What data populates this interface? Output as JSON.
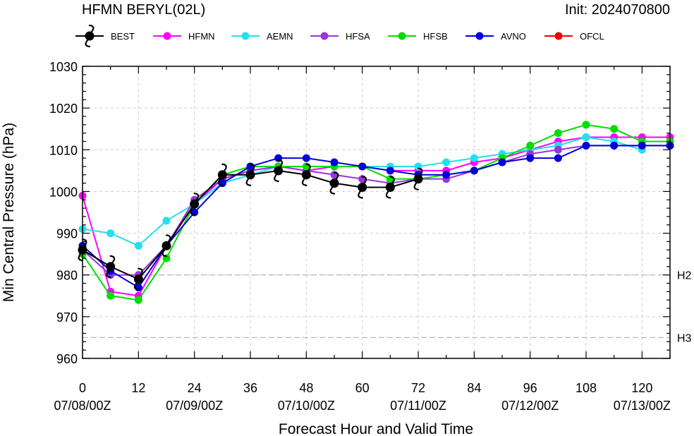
{
  "chart_data": {
    "type": "line",
    "title": "HFMN BERYL(02L)",
    "init_label": "Init: 2024070800",
    "xlabel": "Forecast Hour and Valid Time",
    "ylabel": "Min Central Pressure (hPa)",
    "xlim": [
      0,
      126
    ],
    "ylim": [
      960,
      1030
    ],
    "xticks": [
      0,
      12,
      24,
      36,
      48,
      60,
      72,
      84,
      96,
      108,
      120
    ],
    "xtick_labels": [
      "0",
      "12",
      "24",
      "36",
      "48",
      "60",
      "72",
      "84",
      "96",
      "108",
      "120"
    ],
    "date_ticks": [
      {
        "x": 0,
        "label": "07/08/00Z"
      },
      {
        "x": 24,
        "label": "07/09/00Z"
      },
      {
        "x": 48,
        "label": "07/10/00Z"
      },
      {
        "x": 72,
        "label": "07/11/00Z"
      },
      {
        "x": 96,
        "label": "07/12/00Z"
      },
      {
        "x": 120,
        "label": "07/13/00Z"
      }
    ],
    "yticks": [
      960,
      970,
      980,
      990,
      1000,
      1010,
      1020,
      1030
    ],
    "grid": true,
    "legend_position": "top",
    "reference_lines": [
      {
        "label": "H2",
        "value": 980
      },
      {
        "label": "H3",
        "value": 965
      }
    ],
    "series": [
      {
        "name": "HFMN",
        "color": "#ff00ff",
        "marker": "circle",
        "x": [
          0,
          6,
          12,
          18,
          24,
          30,
          36,
          42,
          48,
          54,
          60,
          66,
          72,
          78,
          84,
          90,
          96,
          102,
          108,
          114,
          120,
          126
        ],
        "y": [
          999,
          976,
          975,
          987,
          997,
          1003,
          1005,
          1006,
          1005,
          1006,
          1006,
          1005,
          1005,
          1005,
          1007,
          1008,
          1010,
          1012,
          1013,
          1013,
          1013,
          1013
        ]
      },
      {
        "name": "AEMN",
        "color": "#22e0ee",
        "marker": "circle",
        "x": [
          0,
          6,
          12,
          18,
          24,
          30,
          36,
          42,
          48,
          54,
          60,
          66,
          72,
          78,
          84,
          90,
          96,
          102,
          108,
          114,
          120
        ],
        "y": [
          991,
          990,
          987,
          993,
          997,
          1002,
          1004,
          1006,
          1006,
          1006,
          1006,
          1006,
          1006,
          1007,
          1008,
          1009,
          1010,
          1011,
          1013,
          1012,
          1010
        ]
      },
      {
        "name": "HFSA",
        "color": "#9933dd",
        "marker": "circle",
        "x": [
          0,
          6,
          12,
          18,
          24,
          30,
          36,
          42,
          48,
          54,
          60,
          66,
          72,
          78,
          84,
          90,
          96,
          102,
          108,
          114,
          120,
          126
        ],
        "y": [
          986,
          980,
          980,
          987,
          998,
          1003,
          1005,
          1006,
          1005,
          1004,
          1003,
          1002,
          1003,
          1003,
          1005,
          1007,
          1009,
          1010,
          1011,
          1011,
          1011,
          1011
        ]
      },
      {
        "name": "HFSB",
        "color": "#00dd00",
        "marker": "circle",
        "x": [
          0,
          6,
          12,
          18,
          24,
          30,
          36,
          42,
          48,
          54,
          60,
          66,
          72,
          78,
          84,
          90,
          96,
          102,
          108,
          114,
          120,
          126
        ],
        "y": [
          985,
          975,
          974,
          984,
          997,
          1004,
          1006,
          1006,
          1006,
          1006,
          1006,
          1003,
          1003,
          1004,
          1005,
          1008,
          1011,
          1014,
          1016,
          1015,
          1012,
          1012
        ]
      },
      {
        "name": "AVNO",
        "color": "#0000dd",
        "marker": "circle",
        "x": [
          0,
          6,
          12,
          18,
          24,
          30,
          36,
          42,
          48,
          54,
          60,
          66,
          72,
          78,
          84,
          90,
          96,
          102,
          108,
          114,
          120,
          126
        ],
        "y": [
          987,
          981,
          977,
          987,
          995,
          1002,
          1006,
          1008,
          1008,
          1007,
          1006,
          1005,
          1004,
          1004,
          1005,
          1007,
          1008,
          1008,
          1011,
          1011,
          1011,
          1011
        ]
      },
      {
        "name": "BEST",
        "color": "#000000",
        "marker": "hurricane",
        "x": [
          0,
          6,
          12,
          18,
          24,
          30,
          36,
          42,
          48,
          54,
          60,
          66,
          72
        ],
        "y": [
          986,
          982,
          979,
          987,
          997,
          1004,
          1004,
          1005,
          1004,
          1002,
          1001,
          1001,
          1003
        ]
      },
      {
        "name": "OFCL",
        "color": "#ee0000",
        "marker": "circle",
        "x": [],
        "y": []
      }
    ],
    "legend_order": [
      "BEST",
      "HFMN",
      "AEMN",
      "HFSA",
      "HFSB",
      "AVNO",
      "OFCL"
    ]
  }
}
